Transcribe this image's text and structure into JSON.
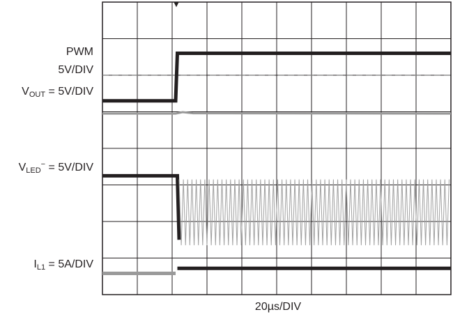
{
  "chart_data": {
    "type": "line",
    "title": "",
    "xlabel": "20µs/DIV",
    "ylabel": "",
    "x_divisions": 10,
    "y_divisions": 8,
    "trigger_marker": "▼",
    "x_unit": "div",
    "y_unit": "div",
    "grid": true,
    "channels": [
      {
        "label_main": "PWM",
        "label_scale": "5V/DIV",
        "color": "#231f20",
        "style": "thick",
        "reference_level": 6.0,
        "points": [
          [
            0,
            5.3
          ],
          [
            2.1,
            5.3
          ],
          [
            2.15,
            6.6
          ],
          [
            10,
            6.6
          ]
        ]
      },
      {
        "label_prefix": "V",
        "label_sub": "OUT",
        "label_suffix": " = 5V/DIV",
        "color": "#9a9a9a",
        "style": "noisy",
        "points": [
          [
            0,
            4.95
          ],
          [
            2.1,
            4.95
          ],
          [
            2.3,
            4.99
          ],
          [
            2.6,
            4.96
          ],
          [
            10,
            4.95
          ]
        ]
      },
      {
        "label_prefix": "V",
        "label_sub": "LED",
        "label_sup": "−",
        "label_suffix": " = 5V/DIV",
        "color": "#231f20",
        "style": "thick",
        "points": [
          [
            0,
            3.25
          ],
          [
            2.15,
            3.25
          ],
          [
            2.2,
            1.5
          ]
        ]
      },
      {
        "color": "#a0a0a0",
        "style": "oscillation",
        "period": 0.123,
        "low": 1.35,
        "high": 3.15,
        "x_start": 2.2,
        "x_end": 10
      },
      {
        "label_prefix": "I",
        "label_sub": "L1",
        "label_suffix": " = 5A/DIV",
        "color": "#231f20",
        "style": "thick",
        "points": [
          [
            2.15,
            0.72
          ],
          [
            10,
            0.72
          ]
        ]
      },
      {
        "color": "#9a9a9a",
        "style": "thick",
        "points": [
          [
            0,
            0.58
          ],
          [
            2.1,
            0.58
          ]
        ]
      }
    ]
  }
}
